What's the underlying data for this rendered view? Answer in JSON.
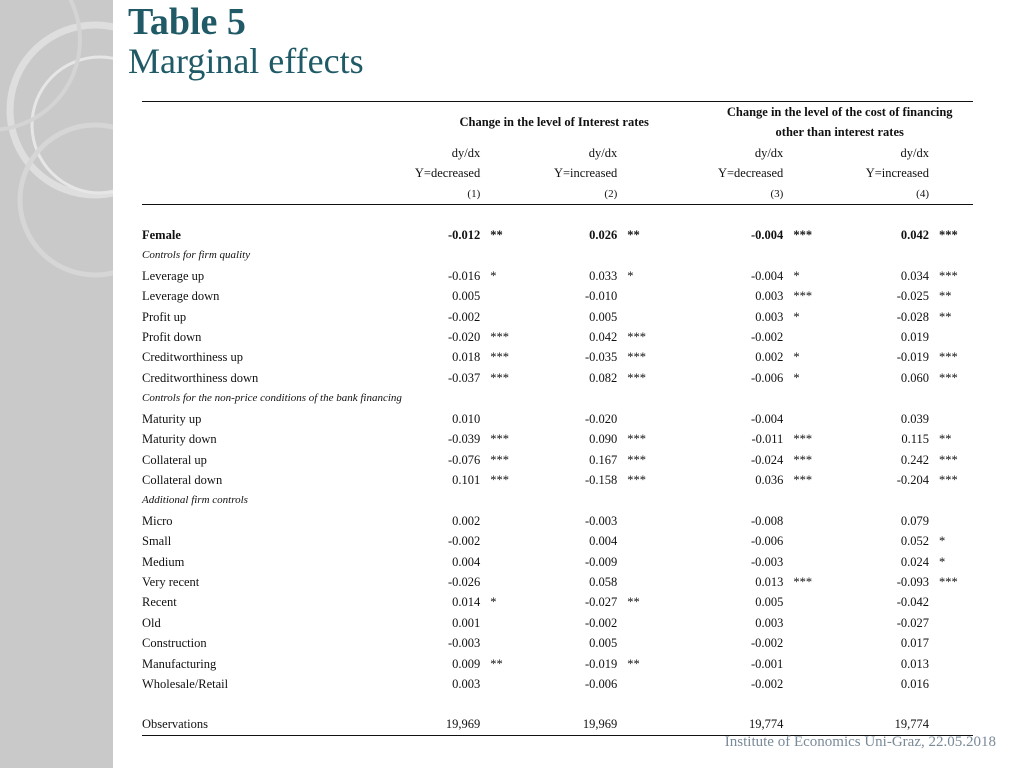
{
  "slide": {
    "title": "Table 5",
    "subtitle": "Marginal effects",
    "footer": "Institute of Economics Uni-Graz, 22.05.2018"
  },
  "table": {
    "group_headers": {
      "interest": "Change in the level of Interest rates",
      "cost_line1": "Change in the level of the cost of financing",
      "cost_line2": "other than interest rates"
    },
    "col_dydx": [
      "dy/dx",
      "dy/dx",
      "dy/dx",
      "dy/dx"
    ],
    "col_y": [
      "Y=decreased",
      "Y=increased",
      "Y=decreased",
      "Y=increased"
    ],
    "col_num": [
      "(1)",
      "(2)",
      "(3)",
      "(4)"
    ],
    "rows": [
      {
        "label": "Female",
        "type": "bold",
        "cells": [
          [
            "-0.012",
            "**"
          ],
          [
            "0.026",
            "**"
          ],
          [
            "-0.004",
            "***"
          ],
          [
            "0.042",
            "***"
          ]
        ]
      },
      {
        "label": "Controls for firm quality",
        "type": "section",
        "cells": [
          [
            "",
            ""
          ],
          [
            "",
            ""
          ],
          [
            "",
            ""
          ],
          [
            "",
            ""
          ]
        ]
      },
      {
        "label": "Leverage up",
        "type": "normal",
        "cells": [
          [
            "-0.016",
            "*"
          ],
          [
            "0.033",
            "*"
          ],
          [
            "-0.004",
            "*"
          ],
          [
            "0.034",
            "***"
          ]
        ]
      },
      {
        "label": "Leverage down",
        "type": "normal",
        "cells": [
          [
            "0.005",
            ""
          ],
          [
            "-0.010",
            ""
          ],
          [
            "0.003",
            "***"
          ],
          [
            "-0.025",
            "**"
          ]
        ]
      },
      {
        "label": "Profit up",
        "type": "normal",
        "cells": [
          [
            "-0.002",
            ""
          ],
          [
            "0.005",
            ""
          ],
          [
            "0.003",
            "*"
          ],
          [
            "-0.028",
            "**"
          ]
        ]
      },
      {
        "label": "Profit down",
        "type": "normal",
        "cells": [
          [
            "-0.020",
            "***"
          ],
          [
            "0.042",
            "***"
          ],
          [
            "-0.002",
            ""
          ],
          [
            "0.019",
            ""
          ]
        ]
      },
      {
        "label": "Creditworthiness up",
        "type": "normal",
        "cells": [
          [
            "0.018",
            "***"
          ],
          [
            "-0.035",
            "***"
          ],
          [
            "0.002",
            "*"
          ],
          [
            "-0.019",
            "***"
          ]
        ]
      },
      {
        "label": "Creditworthiness down",
        "type": "normal",
        "cells": [
          [
            "-0.037",
            "***"
          ],
          [
            "0.082",
            "***"
          ],
          [
            "-0.006",
            "*"
          ],
          [
            "0.060",
            "***"
          ]
        ]
      },
      {
        "label": "Controls for the non-price conditions of the bank financing",
        "type": "section",
        "cells": [
          [
            "",
            ""
          ],
          [
            "",
            ""
          ],
          [
            "",
            ""
          ],
          [
            "",
            ""
          ]
        ]
      },
      {
        "label": "Maturity up",
        "type": "normal",
        "cells": [
          [
            "0.010",
            ""
          ],
          [
            "-0.020",
            ""
          ],
          [
            "-0.004",
            ""
          ],
          [
            "0.039",
            ""
          ]
        ]
      },
      {
        "label": "Maturity down",
        "type": "normal",
        "cells": [
          [
            "-0.039",
            "***"
          ],
          [
            "0.090",
            "***"
          ],
          [
            "-0.011",
            "***"
          ],
          [
            "0.115",
            "**"
          ]
        ]
      },
      {
        "label": "Collateral up",
        "type": "normal",
        "cells": [
          [
            "-0.076",
            "***"
          ],
          [
            "0.167",
            "***"
          ],
          [
            "-0.024",
            "***"
          ],
          [
            "0.242",
            "***"
          ]
        ]
      },
      {
        "label": "Collateral down",
        "type": "normal",
        "cells": [
          [
            "0.101",
            "***"
          ],
          [
            "-0.158",
            "***"
          ],
          [
            "0.036",
            "***"
          ],
          [
            "-0.204",
            "***"
          ]
        ]
      },
      {
        "label": "Additional firm controls",
        "type": "section",
        "cells": [
          [
            "",
            ""
          ],
          [
            "",
            ""
          ],
          [
            "",
            ""
          ],
          [
            "",
            ""
          ]
        ]
      },
      {
        "label": "Micro",
        "type": "normal",
        "cells": [
          [
            "0.002",
            ""
          ],
          [
            "-0.003",
            ""
          ],
          [
            "-0.008",
            ""
          ],
          [
            "0.079",
            ""
          ]
        ]
      },
      {
        "label": "Small",
        "type": "normal",
        "cells": [
          [
            "-0.002",
            ""
          ],
          [
            "0.004",
            ""
          ],
          [
            "-0.006",
            ""
          ],
          [
            "0.052",
            "*"
          ]
        ]
      },
      {
        "label": "Medium",
        "type": "normal",
        "cells": [
          [
            "0.004",
            ""
          ],
          [
            "-0.009",
            ""
          ],
          [
            "-0.003",
            ""
          ],
          [
            "0.024",
            "*"
          ]
        ]
      },
      {
        "label": "Very recent",
        "type": "normal",
        "cells": [
          [
            "-0.026",
            ""
          ],
          [
            "0.058",
            ""
          ],
          [
            "0.013",
            "***"
          ],
          [
            "-0.093",
            "***"
          ]
        ]
      },
      {
        "label": "Recent",
        "type": "normal",
        "cells": [
          [
            "0.014",
            "*"
          ],
          [
            "-0.027",
            "**"
          ],
          [
            "0.005",
            ""
          ],
          [
            "-0.042",
            ""
          ]
        ]
      },
      {
        "label": "Old",
        "type": "normal",
        "cells": [
          [
            "0.001",
            ""
          ],
          [
            "-0.002",
            ""
          ],
          [
            "0.003",
            ""
          ],
          [
            "-0.027",
            ""
          ]
        ]
      },
      {
        "label": "Construction",
        "type": "normal",
        "cells": [
          [
            "-0.003",
            ""
          ],
          [
            "0.005",
            ""
          ],
          [
            "-0.002",
            ""
          ],
          [
            "0.017",
            ""
          ]
        ]
      },
      {
        "label": "Manufacturing",
        "type": "normal",
        "cells": [
          [
            "0.009",
            "**"
          ],
          [
            "-0.019",
            "**"
          ],
          [
            "-0.001",
            ""
          ],
          [
            "0.013",
            ""
          ]
        ]
      },
      {
        "label": "Wholesale/Retail",
        "type": "normal",
        "cells": [
          [
            "0.003",
            ""
          ],
          [
            "-0.006",
            ""
          ],
          [
            "-0.002",
            ""
          ],
          [
            "0.016",
            ""
          ]
        ]
      }
    ],
    "observations": {
      "label": "Observations",
      "values": [
        "19,969",
        "19,969",
        "19,774",
        "19,774"
      ]
    }
  },
  "colors": {
    "title": "#1f5a66",
    "sidebar": "#c9c9c9",
    "footer": "#7a8a99"
  }
}
